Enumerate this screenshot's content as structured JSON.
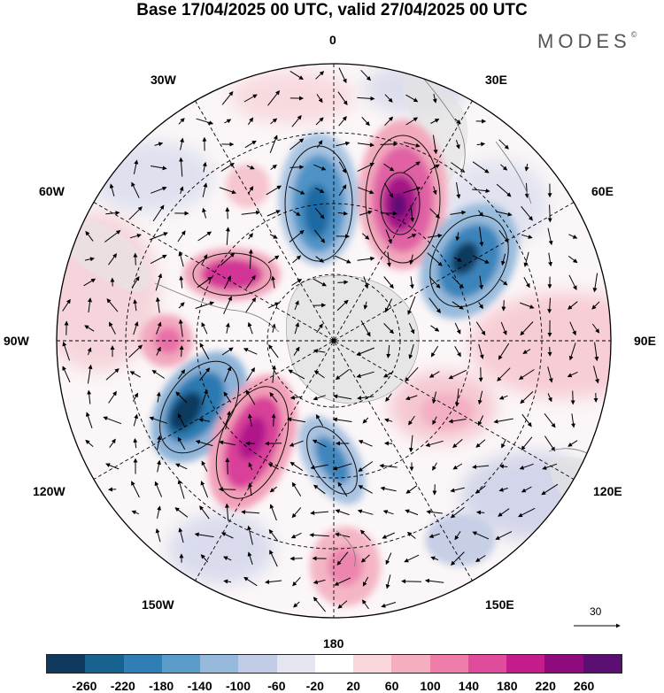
{
  "title": "Base 17/04/2025 00 UTC, valid 27/04/2025 00 UTC",
  "brand": "MODES",
  "brand_mark": "©",
  "longitude_labels": {
    "lon_0": "0",
    "lon_30e": "30E",
    "lon_60e": "60E",
    "lon_90e": "90E",
    "lon_120e": "120E",
    "lon_150e": "150E",
    "lon_180": "180",
    "lon_150w": "150W",
    "lon_120w": "120W",
    "lon_90w": "90W",
    "lon_60w": "60W",
    "lon_30w": "30W"
  },
  "reference_vector_label": "30",
  "colorbar": {
    "colors": [
      "#0f3a5e",
      "#17628f",
      "#2f7fb5",
      "#5a9dcb",
      "#97b9dc",
      "#c3cce6",
      "#e4e5f1",
      "#ffffff",
      "#f9d6da",
      "#f4aebf",
      "#ee7daa",
      "#e04c9c",
      "#c51c8c",
      "#8f0a7c",
      "#5b0f73"
    ],
    "tick_labels": [
      "-260",
      "-220",
      "-180",
      "-140",
      "-100",
      "-60",
      "-20",
      "20",
      "60",
      "100",
      "140",
      "180",
      "220",
      "260"
    ]
  },
  "anomaly_centers": [
    {
      "sign": "negative",
      "strength": "strong",
      "sector": "near 0 / 15W"
    },
    {
      "sign": "positive",
      "strength": "strong",
      "sector": "20E"
    },
    {
      "sign": "negative",
      "strength": "strong",
      "sector": "50E"
    },
    {
      "sign": "positive",
      "strength": "moderate",
      "sector": "75W"
    },
    {
      "sign": "positive",
      "strength": "moderate",
      "sector": "90W"
    },
    {
      "sign": "negative",
      "strength": "strong",
      "sector": "115W"
    },
    {
      "sign": "positive",
      "strength": "strong",
      "sector": "135W"
    },
    {
      "sign": "negative",
      "strength": "moderate",
      "sector": "170W"
    },
    {
      "sign": "positive",
      "strength": "moderate",
      "sector": "180"
    },
    {
      "sign": "positive",
      "strength": "weak",
      "sector": "90E"
    }
  ]
}
